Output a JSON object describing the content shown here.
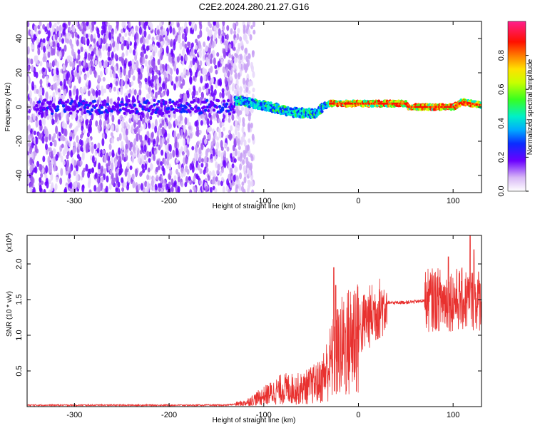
{
  "title": "C2E2.2024.280.21.27.G16",
  "chart_data": [
    {
      "type": "heatmap",
      "xlabel": "Height of straight line (km)",
      "ylabel": "Frequency (Hz)",
      "xlim": [
        -350,
        130
      ],
      "ylim": [
        -50,
        50
      ],
      "x_ticks": [
        "-300",
        "-200",
        "-100",
        "0",
        "100"
      ],
      "y_ticks": [
        "40",
        "20",
        "0",
        "-20",
        "-40"
      ],
      "colorbar": {
        "label": "Normalized spectral amplitude",
        "range": [
          0.0,
          1.0
        ],
        "ticks": [
          "0.0",
          "0.2",
          "0.4",
          "0.6",
          "0.8"
        ],
        "colormap": "rainbow (white-purple-blue-cyan-green-yellow-red-magenta)"
      },
      "description_of_data": {
        "noise_region_x": [
          -350,
          -130
        ],
        "noise_frequency_span": [
          -50,
          50
        ],
        "signal_track": [
          {
            "x": -130,
            "f": 4
          },
          {
            "x": -100,
            "f": 1
          },
          {
            "x": -70,
            "f": -3
          },
          {
            "x": -45,
            "f": -4
          },
          {
            "x": -38,
            "f": 0
          },
          {
            "x": -30,
            "f": 2
          },
          {
            "x": 0,
            "f": 2
          },
          {
            "x": 50,
            "f": 2
          },
          {
            "x": 52,
            "f": 0
          },
          {
            "x": 100,
            "f": 0
          },
          {
            "x": 110,
            "f": 3
          },
          {
            "x": 130,
            "f": 1
          }
        ],
        "peak_amplitude_region_x": [
          -30,
          130
        ]
      }
    },
    {
      "type": "line",
      "xlabel": "Height of straight line (km)",
      "ylabel": "SNR (10 * v/v)",
      "y_multiplier": "(x10",
      "y_multiplier_exp": "4",
      "xlim": [
        -350,
        130
      ],
      "ylim": [
        0,
        2.4
      ],
      "x_ticks": [
        "-300",
        "-200",
        "-100",
        "0",
        "100"
      ],
      "y_ticks": [
        "2.0",
        "1.5",
        "1.0",
        "0.5"
      ],
      "line_color": "#e8312f",
      "series": [
        {
          "envelope": [
            {
              "x": -350,
              "y": 0.02
            },
            {
              "x": -200,
              "y": 0.02
            },
            {
              "x": -140,
              "y": 0.02
            },
            {
              "x": -120,
              "y": 0.05
            },
            {
              "x": -100,
              "y": 0.15
            },
            {
              "x": -80,
              "y": 0.25
            },
            {
              "x": -60,
              "y": 0.25
            },
            {
              "x": -40,
              "y": 0.35
            },
            {
              "x": -30,
              "y": 0.6
            },
            {
              "x": -20,
              "y": 0.8
            },
            {
              "x": -10,
              "y": 0.9
            },
            {
              "x": 0,
              "y": 1.1
            },
            {
              "x": 15,
              "y": 1.3
            },
            {
              "x": 30,
              "y": 1.45
            },
            {
              "x": 60,
              "y": 1.47
            },
            {
              "x": 80,
              "y": 1.5
            },
            {
              "x": 100,
              "y": 1.5
            },
            {
              "x": 130,
              "y": 1.5
            }
          ],
          "spikes": [
            {
              "x": -26,
              "y": 1.95
            },
            {
              "x": -24,
              "y": 1.7
            },
            {
              "x": 95,
              "y": 2.1
            },
            {
              "x": 118,
              "y": 2.4
            },
            {
              "x": 122,
              "y": 2.2
            }
          ]
        }
      ]
    }
  ]
}
